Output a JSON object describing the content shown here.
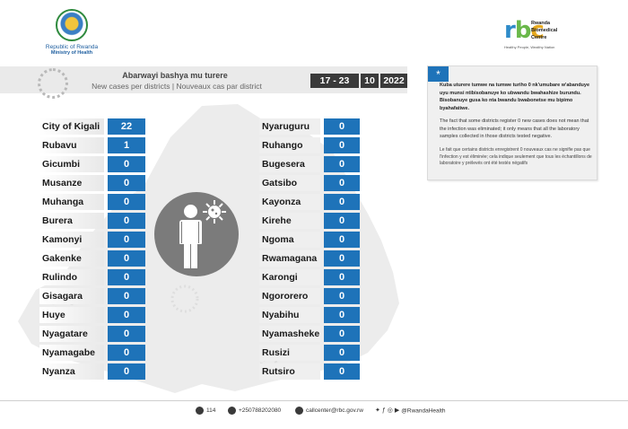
{
  "header": {
    "ministry_line1": "Republic of Rwanda",
    "ministry_line2": "Ministry of Health",
    "rbc_mark_r": "r",
    "rbc_mark_b": "b",
    "rbc_mark_c": "c",
    "rbc_name_line1": "Rwanda",
    "rbc_name_line2": "Biomedical",
    "rbc_name_line3": "Centre",
    "rbc_tagline": "Healthy People, Wealthy Nation"
  },
  "banner": {
    "title_kinyarwanda": "Abarwayi bashya mu turere",
    "title_subtitle": "New cases per districts  |  Nouveaux cas par district",
    "date_range": "17 - 23",
    "date_month": "10",
    "date_year": "2022"
  },
  "note": {
    "star": "*",
    "kinyarwanda": "Kuba uturere tumwe na tumwe turiho 0 nk'umubare w'abanduye  uyu munsi ntibisobanuye ko ubwandu bwahashize burundu. Bisobanuye gusa ko nta bwandu bwabonetse mu bipimo byahafatiwe.",
    "english": "The fact that some districts register 0 new cases does not mean that the infection was eliminated; it only means that all the laboratory samples collected in those districts tested negative.",
    "french": "Le fait que certains districts enregistrent 0 nouveaux cas ne signifie pas que l'infection y est éliminée; cela indique seulement que tous les échantillons de laboratoire y prélevés ont été testés négatifs"
  },
  "left_districts": [
    {
      "name": "City of Kigali",
      "cases": "22"
    },
    {
      "name": "Rubavu",
      "cases": "1"
    },
    {
      "name": "Gicumbi",
      "cases": "0"
    },
    {
      "name": "Musanze",
      "cases": "0"
    },
    {
      "name": "Muhanga",
      "cases": "0"
    },
    {
      "name": "Burera",
      "cases": "0"
    },
    {
      "name": "Kamonyi",
      "cases": "0"
    },
    {
      "name": "Gakenke",
      "cases": "0"
    },
    {
      "name": "Rulindo",
      "cases": "0"
    },
    {
      "name": "Gisagara",
      "cases": "0"
    },
    {
      "name": "Huye",
      "cases": "0"
    },
    {
      "name": "Nyagatare",
      "cases": "0"
    },
    {
      "name": "Nyamagabe",
      "cases": "0"
    },
    {
      "name": "Nyanza",
      "cases": "0"
    }
  ],
  "right_districts": [
    {
      "name": "Nyaruguru",
      "cases": "0"
    },
    {
      "name": "Ruhango",
      "cases": "0"
    },
    {
      "name": "Bugesera",
      "cases": "0"
    },
    {
      "name": "Gatsibo",
      "cases": "0"
    },
    {
      "name": "Kayonza",
      "cases": "0"
    },
    {
      "name": "Kirehe",
      "cases": "0"
    },
    {
      "name": "Ngoma",
      "cases": "0"
    },
    {
      "name": "Rwamagana",
      "cases": "0"
    },
    {
      "name": "Karongi",
      "cases": "0"
    },
    {
      "name": "Ngororero",
      "cases": "0"
    },
    {
      "name": "Nyabihu",
      "cases": "0"
    },
    {
      "name": "Nyamasheke",
      "cases": "0"
    },
    {
      "name": "Rusizi",
      "cases": "0"
    },
    {
      "name": "Rutsiro",
      "cases": "0"
    }
  ],
  "footer": {
    "hotline": "114",
    "phone": "+250788202080",
    "email": "callcenter@rbc.gov.rw",
    "social": "@RwandaHealth"
  },
  "colors": {
    "value_cell": "#1e73b9",
    "date_box": "#3a3a3a",
    "banner": "#eaeaea"
  }
}
